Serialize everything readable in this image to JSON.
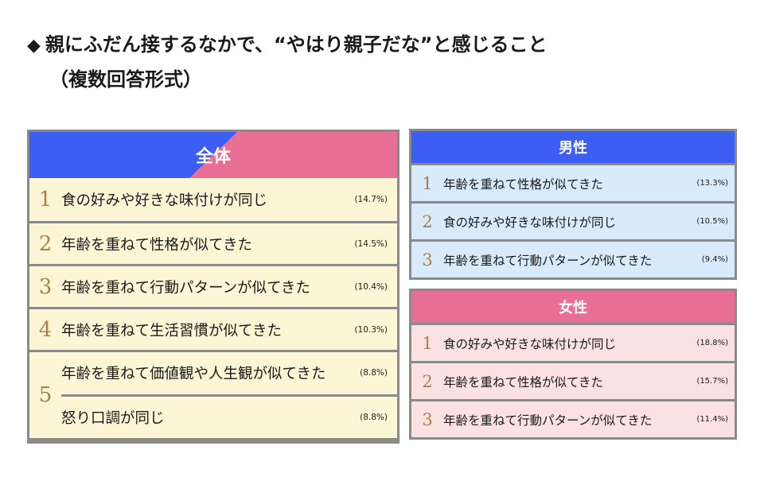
{
  "title": "親にふだん接するなかで、“やはり親子だな”と感じること",
  "title_icon": "diamond-icon",
  "subtitle": "（複数回答形式）",
  "overall": {
    "header": "全体",
    "rows": [
      {
        "rank": "1",
        "label": "食の好みや好きな味付けが同じ",
        "pct": "(14.7%)"
      },
      {
        "rank": "2",
        "label": "年齢を重ねて性格が似てきた",
        "pct": "(14.5%)"
      },
      {
        "rank": "3",
        "label": "年齢を重ねて行動パターンが似てきた",
        "pct": "(10.4%)"
      },
      {
        "rank": "4",
        "label": "年齢を重ねて生活習慣が似てきた",
        "pct": "(10.3%)"
      }
    ],
    "fifth": {
      "rank": "5",
      "items": [
        {
          "label": "年齢を重ねて価値観や人生観が似てきた",
          "pct": "(8.8%)"
        },
        {
          "label": "怒り口調が同じ",
          "pct": "(8.8%)"
        }
      ]
    }
  },
  "male": {
    "header": "男性",
    "rows": [
      {
        "rank": "1",
        "label": "年齢を重ねて性格が似てきた",
        "pct": "(13.3%)"
      },
      {
        "rank": "2",
        "label": "食の好みや好きな味付けが同じ",
        "pct": "(10.5%)"
      },
      {
        "rank": "3",
        "label": "年齢を重ねて行動パターンが似てきた",
        "pct": "(9.4%)"
      }
    ]
  },
  "female": {
    "header": "女性",
    "rows": [
      {
        "rank": "1",
        "label": "食の好みや好きな味付けが同じ",
        "pct": "(18.8%)"
      },
      {
        "rank": "2",
        "label": "年齢を重ねて性格が似てきた",
        "pct": "(15.7%)"
      },
      {
        "rank": "3",
        "label": "年齢を重ねて行動パターンが似てきた",
        "pct": "(11.4%)"
      }
    ]
  },
  "colors": {
    "male_accent": "#3d5ef2",
    "female_accent": "#ea6f97",
    "overall_bg": "#fdf6d6",
    "male_bg": "#d9ebfa",
    "female_bg": "#fce1e3",
    "rank_color": "#a7834a",
    "border": "#8a8a8a"
  }
}
